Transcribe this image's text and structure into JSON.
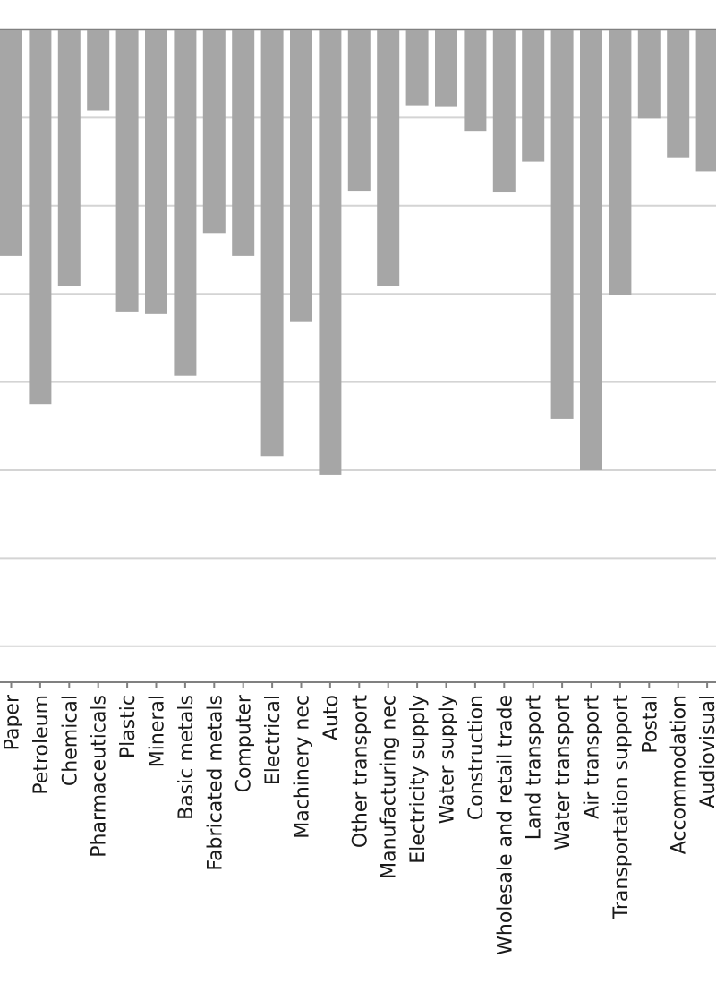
{
  "chart_data": {
    "type": "bar",
    "title": "",
    "xlabel": "",
    "ylabel": "",
    "grid": true,
    "categories": [
      "Paper",
      "Petroleum",
      "Chemical",
      "Pharmaceuticals",
      "Plastic",
      "Mineral",
      "Basic metals",
      "Fabricated metals",
      "Computer",
      "Electrical",
      "Machinery nec",
      "Auto",
      "Other transport",
      "Manufacturing nec",
      "Electricity supply",
      "Water supply",
      "Construction",
      "Wholesale and retail trade",
      "Land transport",
      "Water transport",
      "Air transport",
      "Transportation support",
      "Postal",
      "Accommodation",
      "Audiovisual"
    ],
    "values": [
      -2.57,
      -4.25,
      -2.91,
      -0.92,
      -3.2,
      -3.23,
      -3.93,
      -2.31,
      -2.57,
      -4.84,
      -3.32,
      -5.05,
      -1.83,
      -2.91,
      -0.86,
      -0.87,
      -1.15,
      -1.85,
      -1.5,
      -4.42,
      -5.0,
      -3.01,
      -1.01,
      -1.45,
      -1.61
    ],
    "ylim": [
      -7.4,
      0
    ],
    "gridlines": [
      0,
      -1,
      -2,
      -3,
      -4,
      -5,
      -6,
      -7
    ]
  }
}
